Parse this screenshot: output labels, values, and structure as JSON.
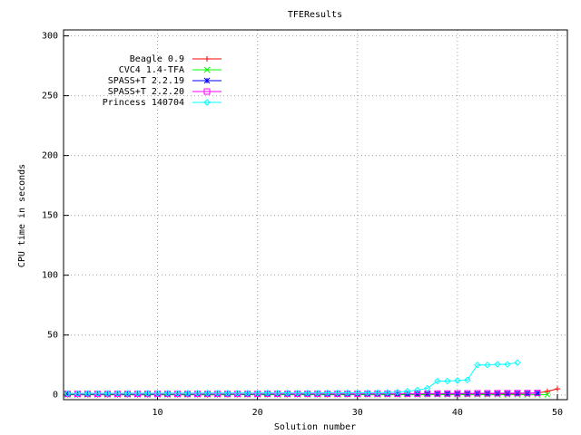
{
  "chart_data": {
    "type": "line",
    "title": "TFEResults",
    "x_label": "Solution number",
    "y_label": "CPU time in seconds",
    "x": [
      1,
      2,
      3,
      4,
      5,
      6,
      7,
      8,
      9,
      10,
      11,
      12,
      13,
      14,
      15,
      16,
      17,
      18,
      19,
      20,
      21,
      22,
      23,
      24,
      25,
      26,
      27,
      28,
      29,
      30,
      31,
      32,
      33,
      34,
      35,
      36,
      37,
      38,
      39,
      40,
      41,
      42,
      43,
      44,
      45,
      46,
      47,
      48,
      49,
      50
    ],
    "xlim": [
      0.6,
      51
    ],
    "xticks": [
      10,
      20,
      30,
      40,
      50
    ],
    "ylim": [
      -4,
      305
    ],
    "yticks": [
      0,
      50,
      100,
      150,
      200,
      250,
      300
    ],
    "grid": true,
    "legend": "top-left",
    "series": [
      {
        "name": "Beagle 0.9",
        "color": "#ff0000",
        "marker": "plus",
        "values": [
          0.1,
          0.1,
          0.1,
          0.1,
          0.1,
          0.1,
          0.1,
          0.1,
          0.1,
          0.1,
          0.1,
          0.1,
          0.1,
          0.1,
          0.1,
          0.1,
          0.2,
          0.2,
          0.2,
          0.2,
          0.2,
          0.2,
          0.2,
          0.2,
          0.2,
          0.2,
          0.2,
          0.2,
          0.3,
          0.3,
          0.3,
          0.3,
          0.3,
          0.3,
          0.4,
          0.4,
          0.4,
          0.5,
          0.5,
          0.5,
          0.6,
          0.6,
          0.7,
          0.8,
          0.9,
          1,
          1.2,
          1.5,
          3,
          5
        ]
      },
      {
        "name": "CVC4 1.4-TFA",
        "color": "#00ff00",
        "marker": "cross",
        "values": [
          0.2,
          0.2,
          0.2,
          0.2,
          0.2,
          0.2,
          0.2,
          0.2,
          0.2,
          0.2,
          0.2,
          0.2,
          0.2,
          0.2,
          0.2,
          0.2,
          0.2,
          0.2,
          0.2,
          0.2,
          0.2,
          0.2,
          0.2,
          0.2,
          0.2,
          0.2,
          0.2,
          0.2,
          0.2,
          0.2,
          0.2,
          0.2,
          0.2,
          0.2,
          0.2,
          0.2,
          0.2,
          0.2,
          0.2,
          0.2,
          0.2,
          0.2,
          0.2,
          0.2,
          0.2,
          0.2,
          0.2,
          0.2,
          0.2,
          null
        ]
      },
      {
        "name": "SPASS+T 2.2.19",
        "color": "#0000ff",
        "marker": "star",
        "values": [
          0.5,
          0.5,
          0.5,
          0.5,
          0.5,
          0.5,
          0.5,
          0.5,
          0.5,
          0.5,
          0.6,
          0.6,
          0.6,
          0.6,
          0.6,
          0.6,
          0.6,
          0.6,
          0.6,
          0.6,
          0.7,
          0.7,
          0.7,
          0.7,
          0.7,
          0.7,
          0.7,
          0.7,
          0.7,
          0.7,
          0.8,
          0.8,
          0.8,
          0.8,
          0.8,
          0.9,
          0.9,
          0.9,
          1,
          1,
          1,
          1.1,
          1.1,
          1.2,
          1.2,
          1.3,
          1.4,
          1.5,
          null,
          null
        ]
      },
      {
        "name": "SPASS+T 2.2.20",
        "color": "#ff00ff",
        "marker": "box",
        "values": [
          0.8,
          0.8,
          0.8,
          0.8,
          0.8,
          0.8,
          0.8,
          0.8,
          0.8,
          0.8,
          0.8,
          0.8,
          0.8,
          0.8,
          0.8,
          0.8,
          0.8,
          0.8,
          0.8,
          0.8,
          0.9,
          0.9,
          0.9,
          0.9,
          0.9,
          0.9,
          0.9,
          0.9,
          0.9,
          0.9,
          1,
          1,
          1,
          1,
          1,
          1,
          1.1,
          1.1,
          1.1,
          1.2,
          1.2,
          1.3,
          1.3,
          1.4,
          1.4,
          1.5,
          1.5,
          1.6,
          null,
          null
        ]
      },
      {
        "name": "Princess 140704",
        "color": "#00ffff",
        "marker": "diamond",
        "values": [
          1.2,
          1.2,
          1.3,
          1.3,
          1.3,
          1.3,
          1.3,
          1.4,
          1.4,
          1.4,
          1.4,
          1.4,
          1.4,
          1.5,
          1.5,
          1.5,
          1.5,
          1.5,
          1.5,
          1.5,
          1.6,
          1.6,
          1.6,
          1.6,
          1.6,
          1.6,
          1.7,
          1.7,
          1.7,
          1.7,
          1.8,
          1.8,
          2,
          2.3,
          3,
          4,
          5.5,
          11.5,
          11.5,
          12,
          12.5,
          25,
          25,
          25.5,
          25.5,
          27,
          null,
          null,
          null,
          null
        ]
      }
    ]
  }
}
